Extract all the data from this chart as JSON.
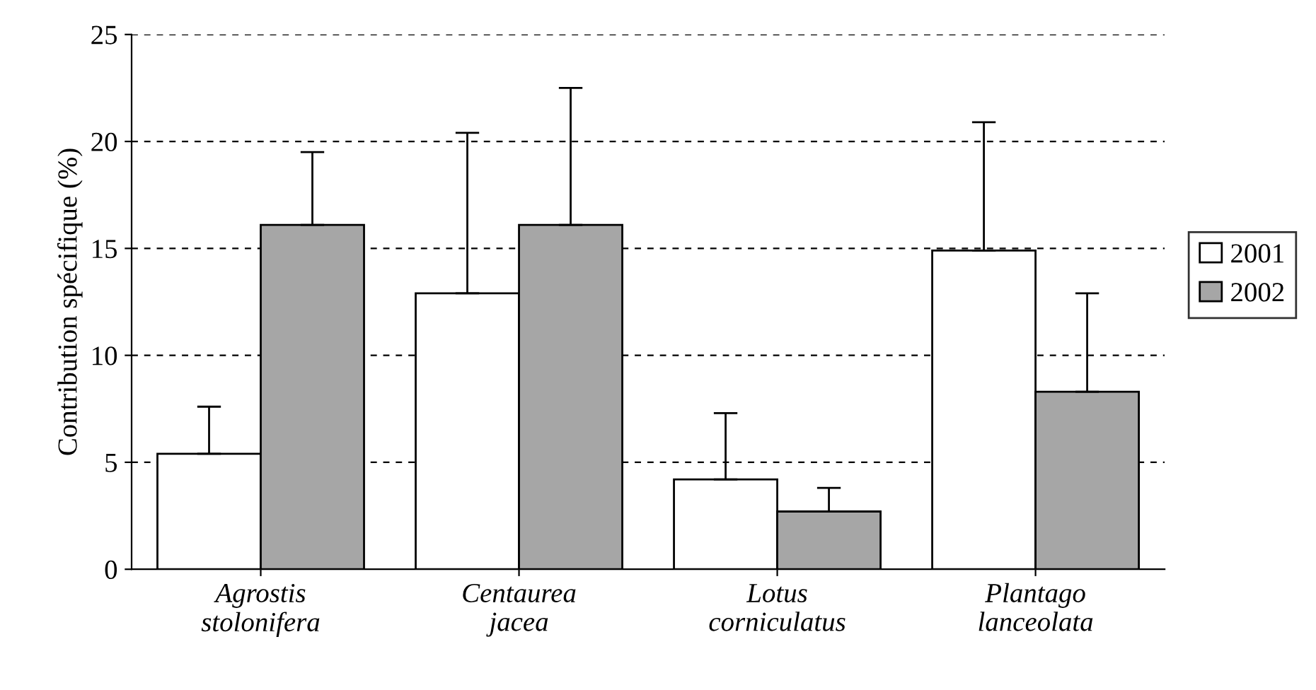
{
  "chart_data": {
    "type": "bar",
    "ylabel": "Contribution spécifique (%)",
    "categories": [
      "Agrostis\nstolonifera",
      "Centaurea\njacea",
      "Lotus\ncorniculatus",
      "Plantago\nlanceolata"
    ],
    "series": [
      {
        "name": "2001",
        "color": "#ffffff",
        "values": [
          5.4,
          12.9,
          4.2,
          14.9
        ],
        "errors": [
          [
            5.4,
            7.6
          ],
          [
            12.9,
            20.4
          ],
          [
            4.2,
            7.3
          ],
          [
            14.9,
            20.9
          ]
        ]
      },
      {
        "name": "2002",
        "color": "#a6a6a6",
        "values": [
          16.1,
          16.1,
          2.7,
          8.3
        ],
        "errors": [
          [
            16.1,
            19.5
          ],
          [
            16.1,
            22.5
          ],
          [
            2.7,
            3.8
          ],
          [
            8.3,
            12.9
          ]
        ]
      }
    ],
    "ylim": [
      0,
      25
    ],
    "yticks": [
      0,
      5,
      10,
      15,
      20,
      25
    ],
    "grid": "y",
    "legend": "right"
  }
}
